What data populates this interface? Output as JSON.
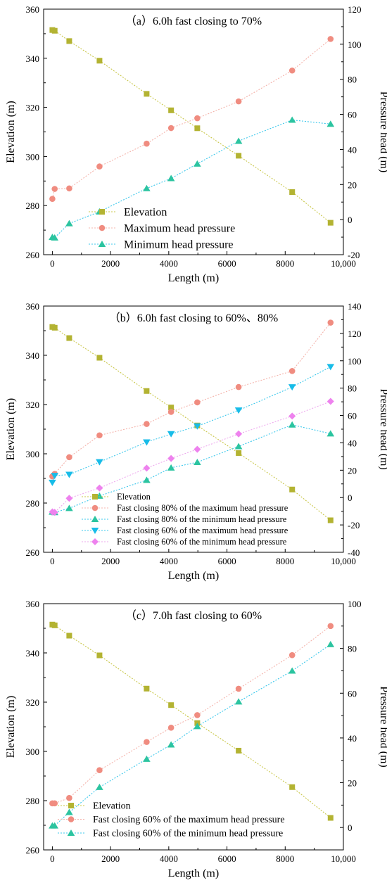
{
  "chart_data": [
    {
      "type": "line",
      "panel": "a",
      "title": "（a）6.0h fast closing to 70%",
      "xlabel": "Length (m)",
      "ylabel": "Elevation (m)",
      "y2label": "Pressure head (m)",
      "xlim": [
        -300,
        10000
      ],
      "ylim": [
        260,
        360
      ],
      "y2lim": [
        -20,
        120
      ],
      "xticks": [
        0,
        2000,
        4000,
        6000,
        8000,
        10000
      ],
      "xtick_labels": [
        "0",
        "2000",
        "4000",
        "6000",
        "8000",
        "10,000"
      ],
      "yticks": [
        260,
        280,
        300,
        320,
        340,
        360
      ],
      "y2ticks": [
        -20,
        0,
        20,
        40,
        60,
        80,
        100,
        120
      ],
      "x": [
        0,
        80,
        580,
        1620,
        3240,
        4080,
        4980,
        6400,
        8240,
        9560
      ],
      "series": [
        {
          "name": "Elevation",
          "axis": "left",
          "marker": "square",
          "color": "#b3b332",
          "line": "#c9c74a",
          "values": [
            351.5,
            351.2,
            347.0,
            339.0,
            325.5,
            318.8,
            311.5,
            300.3,
            285.5,
            273.0
          ]
        },
        {
          "name": "Maximum head pressure",
          "axis": "right",
          "marker": "circle",
          "color": "#f08c80",
          "line": "#f4b4ac",
          "values": [
            11.8,
            17.5,
            17.8,
            30.3,
            43.3,
            52.2,
            57.8,
            67.4,
            85.0,
            103.0
          ]
        },
        {
          "name": "Minimum head pressure",
          "axis": "right",
          "marker": "triangle",
          "color": "#2cc4a0",
          "line": "#3cc8ec",
          "values": [
            -10.0,
            -10.3,
            -2.2,
            4.5,
            17.8,
            23.5,
            31.8,
            44.8,
            56.8,
            54.5
          ]
        }
      ],
      "legend_placement": "lower-left"
    },
    {
      "type": "line",
      "panel": "b",
      "title": "（b）6.0h fast closing to 60%、80%",
      "xlabel": "Length (m)",
      "ylabel": "Elevation (m)",
      "y2label": "Pressure head (m)",
      "xlim": [
        -300,
        10000
      ],
      "ylim": [
        260,
        360
      ],
      "y2lim": [
        -40,
        140
      ],
      "xticks": [
        0,
        2000,
        4000,
        6000,
        8000,
        10000
      ],
      "xtick_labels": [
        "0",
        "2000",
        "4000",
        "6000",
        "8000",
        "10,000"
      ],
      "yticks": [
        260,
        280,
        300,
        320,
        340,
        360
      ],
      "y2ticks": [
        -40,
        -20,
        0,
        20,
        40,
        60,
        80,
        100,
        120,
        140
      ],
      "x": [
        0,
        80,
        580,
        1620,
        3240,
        4080,
        4980,
        6400,
        8240,
        9560
      ],
      "series": [
        {
          "name": "Elevation",
          "axis": "left",
          "marker": "square",
          "color": "#b3b332",
          "line": "#c9c74a",
          "values": [
            351.5,
            351.2,
            347.0,
            339.0,
            325.5,
            318.8,
            311.5,
            300.3,
            285.5,
            273.0
          ]
        },
        {
          "name": "Fast closing 80% of the maximum head pressure",
          "axis": "right",
          "marker": "circle",
          "color": "#f08c80",
          "line": "#f4b4ac",
          "values": [
            15.5,
            17.3,
            29.5,
            45.5,
            53.8,
            62.6,
            69.6,
            80.8,
            92.5,
            127.9
          ]
        },
        {
          "name": "Fast closing 80% of the minimum head pressure",
          "axis": "right",
          "marker": "triangle",
          "color": "#2cc4a0",
          "line": "#3cc8ec",
          "values": [
            -10.5,
            -10.8,
            -7.8,
            1.2,
            12.8,
            21.8,
            25.8,
            37.4,
            53.2,
            46.7
          ]
        },
        {
          "name": "Fast closing 60% of the maximum head pressure",
          "axis": "right",
          "marker": "tri-down",
          "color": "#18bce8",
          "line": "#3cc8ec",
          "values": [
            11.0,
            16.0,
            16.8,
            26.0,
            40.5,
            46.5,
            52.2,
            63.8,
            80.8,
            95.6
          ]
        },
        {
          "name": "Fast closing 60% of the minimum head pressure",
          "axis": "right",
          "marker": "diamond",
          "color": "#ee82ee",
          "line": "#eeaaee",
          "values": [
            -10.5,
            -10.8,
            -0.5,
            7.0,
            21.5,
            28.6,
            35.3,
            46.5,
            59.6,
            70.3
          ]
        }
      ],
      "legend_placement": "lower-left"
    },
    {
      "type": "line",
      "panel": "c",
      "title": "（c）7.0h fast closing to 60%",
      "xlabel": "Length (m)",
      "ylabel": "Elevation (m)",
      "y2label": "Pressure head (m)",
      "xlim": [
        -300,
        10000
      ],
      "ylim": [
        260,
        360
      ],
      "y2lim": [
        -10,
        100
      ],
      "xticks": [
        0,
        2000,
        4000,
        6000,
        8000,
        10000
      ],
      "xtick_labels": [
        "0",
        "2000",
        "4000",
        "6000",
        "8000",
        "10,000"
      ],
      "yticks": [
        260,
        280,
        300,
        320,
        340,
        360
      ],
      "y2ticks": [
        0,
        20,
        40,
        60,
        80,
        100
      ],
      "x": [
        0,
        80,
        580,
        1620,
        3240,
        4080,
        4980,
        6400,
        8240,
        9560
      ],
      "series": [
        {
          "name": "Elevation",
          "axis": "left",
          "marker": "square",
          "color": "#b3b332",
          "line": "#c9c74a",
          "values": [
            351.5,
            351.2,
            347.0,
            339.0,
            325.5,
            318.8,
            311.5,
            300.3,
            285.5,
            273.0
          ]
        },
        {
          "name": "Fast closing 60% of the maximum head pressure",
          "axis": "right",
          "marker": "circle",
          "color": "#f08c80",
          "line": "#f4b4ac",
          "values": [
            10.8,
            10.8,
            13.2,
            25.6,
            38.2,
            44.6,
            50.2,
            62.0,
            77.0,
            90.0
          ]
        },
        {
          "name": "Fast closing 60% of the minimum head pressure",
          "axis": "right",
          "marker": "triangle",
          "color": "#2cc4a0",
          "line": "#3cc8ec",
          "values": [
            0.8,
            0.8,
            6.8,
            18.0,
            30.6,
            37.0,
            45.2,
            56.2,
            70.0,
            81.8
          ]
        }
      ],
      "legend_placement": "lower-left"
    }
  ]
}
